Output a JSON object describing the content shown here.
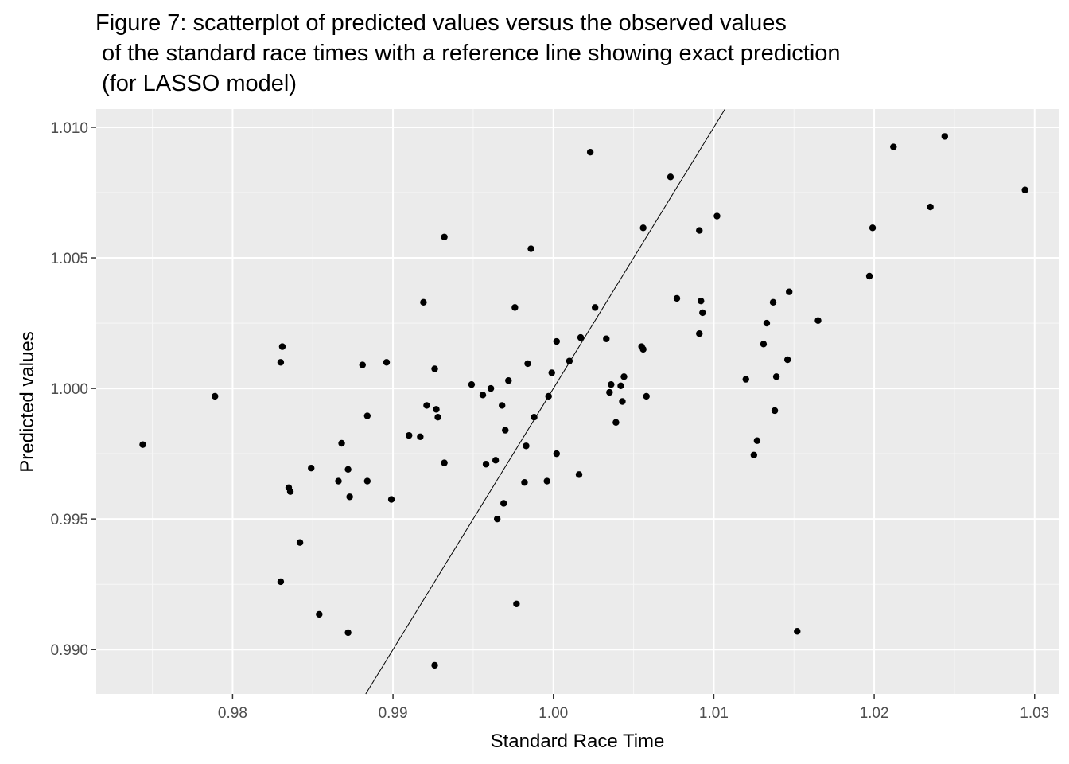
{
  "chart_data": {
    "type": "scatter",
    "title": "Figure 7: scatterplot of predicted values versus the observed values\n of the standard race times with a reference line showing exact prediction\n (for LASSO model)",
    "xlabel": "Standard Race Time",
    "ylabel": "Predicted values",
    "xlim": [
      0.9715,
      1.0315
    ],
    "ylim": [
      0.9883,
      1.0107
    ],
    "xticks": [
      0.98,
      0.99,
      1.0,
      1.01,
      1.02,
      1.03
    ],
    "xtick_labels": [
      "0.98",
      "0.99",
      "1.00",
      "1.01",
      "1.02",
      "1.03"
    ],
    "yticks": [
      0.99,
      0.995,
      1.0,
      1.005,
      1.01
    ],
    "ytick_labels": [
      "0.990",
      "0.995",
      "1.000",
      "1.005",
      "1.010"
    ],
    "grid": true,
    "reference_line": {
      "intercept": 0,
      "slope": 1
    },
    "points": [
      [
        0.9744,
        0.99785
      ],
      [
        0.9789,
        0.9997
      ],
      [
        0.983,
        1.001
      ],
      [
        0.9831,
        1.0016
      ],
      [
        0.983,
        0.9926
      ],
      [
        0.9835,
        0.9962
      ],
      [
        0.9836,
        0.99605
      ],
      [
        0.9842,
        0.9941
      ],
      [
        0.9849,
        0.99695
      ],
      [
        0.9854,
        0.99135
      ],
      [
        0.9866,
        0.99645
      ],
      [
        0.9868,
        0.9979
      ],
      [
        0.9872,
        0.9969
      ],
      [
        0.9873,
        0.99585
      ],
      [
        0.9872,
        0.99065
      ],
      [
        0.9881,
        1.0009
      ],
      [
        0.9884,
        0.99895
      ],
      [
        0.9884,
        0.99645
      ],
      [
        0.9896,
        1.001
      ],
      [
        0.9899,
        0.99575
      ],
      [
        0.991,
        0.9982
      ],
      [
        0.9917,
        0.99815
      ],
      [
        0.9919,
        1.0033
      ],
      [
        0.9921,
        0.99935
      ],
      [
        0.9926,
        1.00075
      ],
      [
        0.9927,
        0.9992
      ],
      [
        0.9928,
        0.9989
      ],
      [
        0.9926,
        0.9894
      ],
      [
        0.9932,
        1.0058
      ],
      [
        0.9932,
        0.99715
      ],
      [
        0.9949,
        1.00015
      ],
      [
        0.9956,
        0.99975
      ],
      [
        0.9958,
        0.9971
      ],
      [
        0.9961,
        1.0
      ],
      [
        0.9964,
        0.99725
      ],
      [
        0.9965,
        0.995
      ],
      [
        0.9968,
        0.99935
      ],
      [
        0.9969,
        0.9956
      ],
      [
        0.997,
        0.9984
      ],
      [
        0.9972,
        1.0003
      ],
      [
        0.9976,
        1.0031
      ],
      [
        0.9977,
        0.99175
      ],
      [
        0.9982,
        0.9964
      ],
      [
        0.9983,
        0.9978
      ],
      [
        0.9984,
        1.00095
      ],
      [
        0.9986,
        1.00535
      ],
      [
        0.9988,
        0.9989
      ],
      [
        0.9996,
        0.99645
      ],
      [
        0.9997,
        0.9997
      ],
      [
        0.9999,
        1.0006
      ],
      [
        1.0002,
        0.9975
      ],
      [
        1.0002,
        1.0018
      ],
      [
        1.001,
        1.00105
      ],
      [
        1.0016,
        0.9967
      ],
      [
        1.0017,
        1.00195
      ],
      [
        1.0023,
        1.00905
      ],
      [
        1.0026,
        1.0031
      ],
      [
        1.0033,
        1.0019
      ],
      [
        1.0035,
        0.99985
      ],
      [
        1.0036,
        1.00015
      ],
      [
        1.0039,
        0.9987
      ],
      [
        1.0042,
        1.0001
      ],
      [
        1.0043,
        0.9995
      ],
      [
        1.0044,
        1.00045
      ],
      [
        1.0055,
        1.0016
      ],
      [
        1.0056,
        1.0015
      ],
      [
        1.0056,
        1.00615
      ],
      [
        1.0058,
        0.9997
      ],
      [
        1.0073,
        1.0081
      ],
      [
        1.0077,
        1.00345
      ],
      [
        1.0091,
        1.0021
      ],
      [
        1.0091,
        1.00605
      ],
      [
        1.0092,
        1.00335
      ],
      [
        1.0093,
        1.0029
      ],
      [
        1.0102,
        1.0066
      ],
      [
        1.012,
        1.00035
      ],
      [
        1.0125,
        0.99745
      ],
      [
        1.0127,
        0.998
      ],
      [
        1.0131,
        1.0017
      ],
      [
        1.0133,
        1.0025
      ],
      [
        1.0137,
        1.0033
      ],
      [
        1.0138,
        0.99915
      ],
      [
        1.0139,
        1.00045
      ],
      [
        1.0146,
        1.0011
      ],
      [
        1.0147,
        1.0037
      ],
      [
        1.0152,
        0.9907
      ],
      [
        1.0165,
        1.0026
      ],
      [
        1.0197,
        1.0043
      ],
      [
        1.0199,
        1.00615
      ],
      [
        1.0212,
        1.00925
      ],
      [
        1.0235,
        1.00695
      ],
      [
        1.0244,
        1.00965
      ],
      [
        1.0294,
        1.0076
      ]
    ]
  }
}
